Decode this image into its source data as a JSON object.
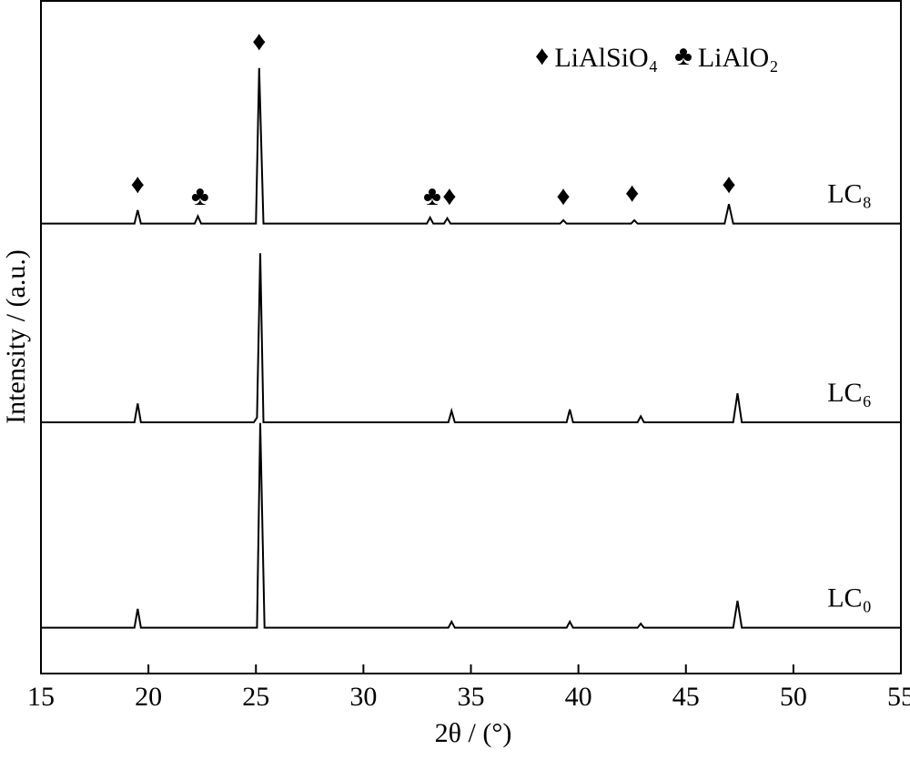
{
  "chart_data": {
    "type": "line",
    "xlabel": "2θ / (°)",
    "ylabel": "Intensity / (a.u.)",
    "xlim": [
      15,
      55
    ],
    "xticks": [
      15,
      20,
      25,
      30,
      35,
      40,
      45,
      50,
      55
    ],
    "ylim": [
      0,
      100
    ],
    "series": [
      {
        "name": "LC₈",
        "color": "#000000",
        "x": [
          15,
          19.35,
          19.5,
          19.65,
          22.15,
          22.3,
          22.45,
          25.0,
          25.15,
          25.35,
          32.95,
          33.1,
          33.25,
          33.75,
          33.9,
          34.05,
          39.15,
          39.3,
          39.45,
          42.45,
          42.6,
          42.75,
          46.8,
          47.0,
          47.2,
          55
        ],
        "values": [
          66.8,
          66.8,
          68.8,
          66.8,
          66.8,
          67.9,
          66.8,
          66.8,
          89.9,
          66.8,
          66.8,
          67.7,
          66.8,
          66.8,
          67.6,
          66.8,
          66.8,
          67.3,
          66.8,
          66.8,
          67.3,
          66.8,
          66.8,
          69.7,
          66.8,
          66.8
        ]
      },
      {
        "name": "LC₆",
        "color": "#000000",
        "x": [
          15,
          19.35,
          19.5,
          19.65,
          24.9,
          25.05,
          25.2,
          25.35,
          33.95,
          34.1,
          34.25,
          39.45,
          39.6,
          39.75,
          42.75,
          42.9,
          43.05,
          47.2,
          47.4,
          47.6,
          55
        ],
        "values": [
          37.3,
          37.3,
          40.1,
          37.3,
          37.3,
          38.0,
          62.4,
          37.3,
          37.3,
          39.0,
          37.3,
          37.3,
          39.2,
          37.3,
          37.3,
          38.2,
          37.3,
          37.3,
          41.6,
          37.3,
          37.3
        ]
      },
      {
        "name": "LC₀",
        "color": "#000000",
        "x": [
          15,
          19.35,
          19.5,
          19.65,
          25.05,
          25.2,
          25.4,
          33.95,
          34.1,
          34.25,
          39.45,
          39.6,
          39.75,
          42.75,
          42.9,
          43.05,
          47.2,
          47.4,
          47.6,
          55
        ],
        "values": [
          6.8,
          6.8,
          9.6,
          6.8,
          6.8,
          37.2,
          6.8,
          6.8,
          7.7,
          6.8,
          6.8,
          7.7,
          6.8,
          6.8,
          7.4,
          6.8,
          6.8,
          10.8,
          6.8,
          6.8
        ]
      }
    ],
    "phases": [
      {
        "symbol": "♦",
        "name": "LiAlSiO₄"
      },
      {
        "symbol": "♣",
        "name": "LiAlO₂"
      }
    ],
    "annotations": [
      {
        "text": "♦",
        "x": 19.5,
        "y": 72.3
      },
      {
        "text": "♣",
        "x": 22.4,
        "y": 70.5
      },
      {
        "text": "♦",
        "x": 25.15,
        "y": 93.5
      },
      {
        "text": "♣",
        "x": 33.2,
        "y": 70.5
      },
      {
        "text": "♦",
        "x": 34.0,
        "y": 70.5
      },
      {
        "text": "♦",
        "x": 39.3,
        "y": 70.5
      },
      {
        "text": "♦",
        "x": 42.5,
        "y": 71.0
      },
      {
        "text": "♦",
        "x": 47.0,
        "y": 72.3
      }
    ]
  }
}
